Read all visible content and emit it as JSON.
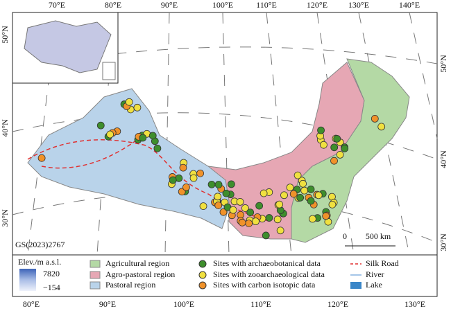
{
  "map": {
    "top_axis_labels": [
      "70°E",
      "80°E",
      "90°E",
      "100°E",
      "110°E",
      "120°E",
      "130°E",
      "140°E"
    ],
    "left_axis_labels": [
      "50°N",
      "40°N",
      "30°N"
    ],
    "right_axis_labels": [
      "50°N",
      "40°N",
      "30°N"
    ],
    "bottom_axis_labels": [
      "80°E",
      "90°E",
      "100°E",
      "110°E",
      "120°E",
      "130°E"
    ],
    "map_code": "GS(2023)2767",
    "scale_bar": {
      "start": "0",
      "end": "500 km"
    },
    "legend": {
      "elevation": {
        "title": "Elev./m a.s.l.",
        "max": "7820",
        "min": "−154"
      },
      "items": [
        "Agricultural region",
        "Agro-pastoral region",
        "Pastoral region",
        "Sites with archaeobotanical data",
        "Sites with zooarchaeological data",
        "Sites with carbon isotopic data",
        "Silk Road",
        "River",
        "Lake"
      ]
    }
  }
}
